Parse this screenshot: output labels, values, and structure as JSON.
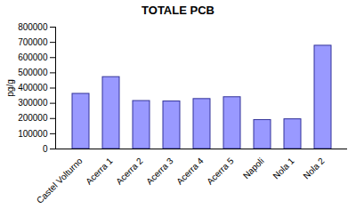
{
  "chart_data": {
    "type": "bar",
    "title": "TOTALE PCB",
    "y_label": "pg/g",
    "categories": [
      "Castel Volturno",
      "Acerra 1",
      "Acerra 2",
      "Acerra 3",
      "Acerra 4",
      "Acerra 5",
      "Napoli",
      "Nola 1",
      "Nola 2"
    ],
    "values": [
      362000,
      472000,
      315000,
      312000,
      328000,
      340000,
      190000,
      195000,
      678000
    ],
    "color": "#9999ff",
    "ylim": [
      0,
      800000
    ],
    "yticks": [
      0,
      100000,
      200000,
      300000,
      400000,
      500000,
      600000,
      700000,
      800000
    ],
    "grid": false
  }
}
